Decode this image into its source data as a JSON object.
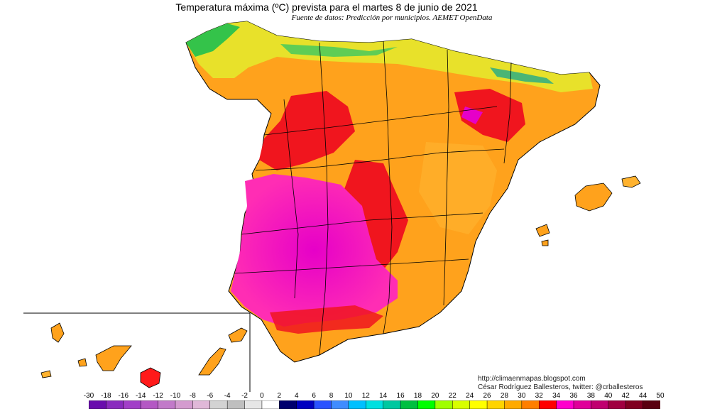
{
  "title": "Temperatura máxima (ºC) prevista para el martes 8 de junio de 2021",
  "subtitle": "Fuente de datos: Predicción por municipios. AEMET OpenData",
  "credits": {
    "blog": "http://climaenmapas.blogspot.com",
    "author": "César Rodríguez Ballesteros, twitter: @crballesteros"
  },
  "legend": {
    "unit": "ºC",
    "ticks": [
      "-30",
      "-18",
      "-16",
      "-14",
      "-12",
      "-10",
      "-8",
      "-6",
      "-4",
      "-2",
      "0",
      "2",
      "4",
      "6",
      "8",
      "10",
      "12",
      "14",
      "16",
      "18",
      "20",
      "22",
      "24",
      "26",
      "28",
      "30",
      "32",
      "34",
      "36",
      "38",
      "40",
      "42",
      "44",
      "50"
    ],
    "colors": [
      "#6a0dad",
      "#8a2bbe",
      "#a23fc8",
      "#b458c4",
      "#c27ac9",
      "#d49bcf",
      "#e0b8d8",
      "#d3d3d3",
      "#bfbfbf",
      "#e6e6e6",
      "#ffffff",
      "#00006e",
      "#0000c0",
      "#2a52ff",
      "#3f8cff",
      "#00c0ff",
      "#00e0e0",
      "#00c8a0",
      "#00c040",
      "#00ff00",
      "#a0ff00",
      "#d8ff00",
      "#ffff00",
      "#ffd400",
      "#ffaa00",
      "#ff7f00",
      "#ff0000",
      "#ff00cc",
      "#e0009a",
      "#c0006f",
      "#a00040",
      "#800020",
      "#5a0010"
    ]
  },
  "regions": {
    "peninsula": "Península Ibérica",
    "baleares": "Islas Baleares",
    "canarias": "Islas Canarias"
  },
  "colors": {
    "magenta_zone": "#e820c8",
    "red_zone": "#ff1a1a",
    "orange_zone": "#ff9a1a",
    "yellow_zone": "#e8e830",
    "green_zone": "#40d040",
    "border": "#000000"
  }
}
